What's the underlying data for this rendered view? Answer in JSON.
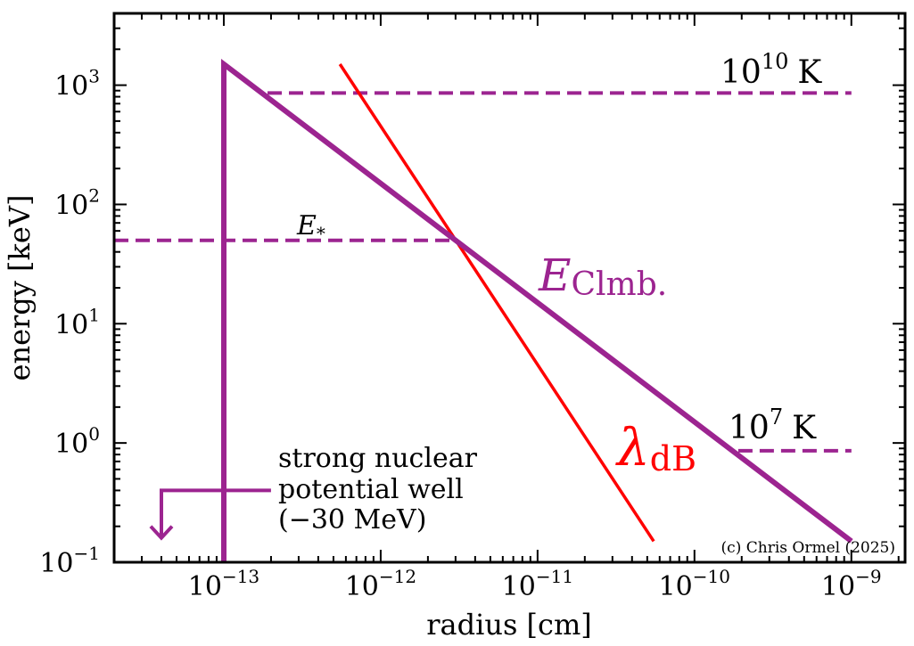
{
  "chart_data": {
    "type": "line",
    "x_scale": "log",
    "y_scale": "log",
    "xlim": [
      2e-14,
      2.2e-09
    ],
    "ylim": [
      0.1,
      4000
    ],
    "xlabel": "radius [cm]",
    "ylabel": "energy [keV]",
    "x_ticks": [
      {
        "value": 1e-13,
        "base": "10",
        "exp": "−13"
      },
      {
        "value": 1e-12,
        "base": "10",
        "exp": "−12"
      },
      {
        "value": 1e-11,
        "base": "10",
        "exp": "−11"
      },
      {
        "value": 1e-10,
        "base": "10",
        "exp": "−10"
      },
      {
        "value": 1e-09,
        "base": "10",
        "exp": "−9"
      }
    ],
    "y_ticks": [
      {
        "value": 0.1,
        "base": "10",
        "exp": "−1"
      },
      {
        "value": 1,
        "base": "10",
        "exp": "0"
      },
      {
        "value": 10,
        "base": "10",
        "exp": "1"
      },
      {
        "value": 100,
        "base": "10",
        "exp": "2"
      },
      {
        "value": 1000,
        "base": "10",
        "exp": "3"
      }
    ],
    "series": [
      {
        "name": "E_Clmb",
        "color": "#9c2490",
        "style": "solid-thick",
        "points": [
          [
            1e-13,
            0.1
          ],
          [
            1e-13,
            1500
          ],
          [
            1e-09,
            0.15
          ]
        ]
      },
      {
        "name": "lambda_dB",
        "color": "#ff0000",
        "style": "solid",
        "points": [
          [
            5.5e-13,
            1500
          ],
          [
            5.5e-11,
            0.15
          ]
        ]
      },
      {
        "name": "E_star",
        "color": "#9c2490",
        "style": "dashed",
        "points": [
          [
            2e-14,
            50
          ],
          [
            3e-12,
            50
          ]
        ]
      },
      {
        "name": "T_1e10K",
        "color": "#9c2490",
        "style": "dashed",
        "points": [
          [
            1.9e-13,
            860
          ],
          [
            1e-09,
            860
          ]
        ]
      },
      {
        "name": "T_1e7K",
        "color": "#9c2490",
        "style": "dashed",
        "points": [
          [
            1.9e-10,
            0.86
          ],
          [
            1e-09,
            0.86
          ]
        ]
      },
      {
        "name": "well_arrow",
        "color": "#9c2490",
        "style": "arrow",
        "points": [
          [
            2e-13,
            0.4
          ],
          [
            4e-14,
            0.4
          ],
          [
            4e-14,
            0.16
          ]
        ]
      }
    ],
    "annotations": {
      "e_clmb": {
        "main": "E",
        "sub": "Clmb.",
        "color": "#9c2490",
        "at": [
          1e-11,
          21
        ]
      },
      "lambda_db": {
        "main": "λ",
        "sub": "dB",
        "color": "#ff0000",
        "at": [
          3e-11,
          0.72
        ]
      },
      "e_star": {
        "main": "E",
        "sub": "*",
        "color": "#000000",
        "at": [
          3.2e-13,
          58
        ]
      },
      "t_1e10": {
        "base": "10",
        "exp": "10",
        "unit": "K",
        "at": [
          1.4e-10,
          1050
        ]
      },
      "t_1e7": {
        "base": "10",
        "exp": "7",
        "unit": "K",
        "at": [
          1.6e-10,
          1.02
        ]
      },
      "well_line1": "strong nuclear",
      "well_line2": "potential well",
      "well_line3": "(−30 MeV)",
      "copyright": "(c) Chris Ormel (2025)"
    }
  }
}
